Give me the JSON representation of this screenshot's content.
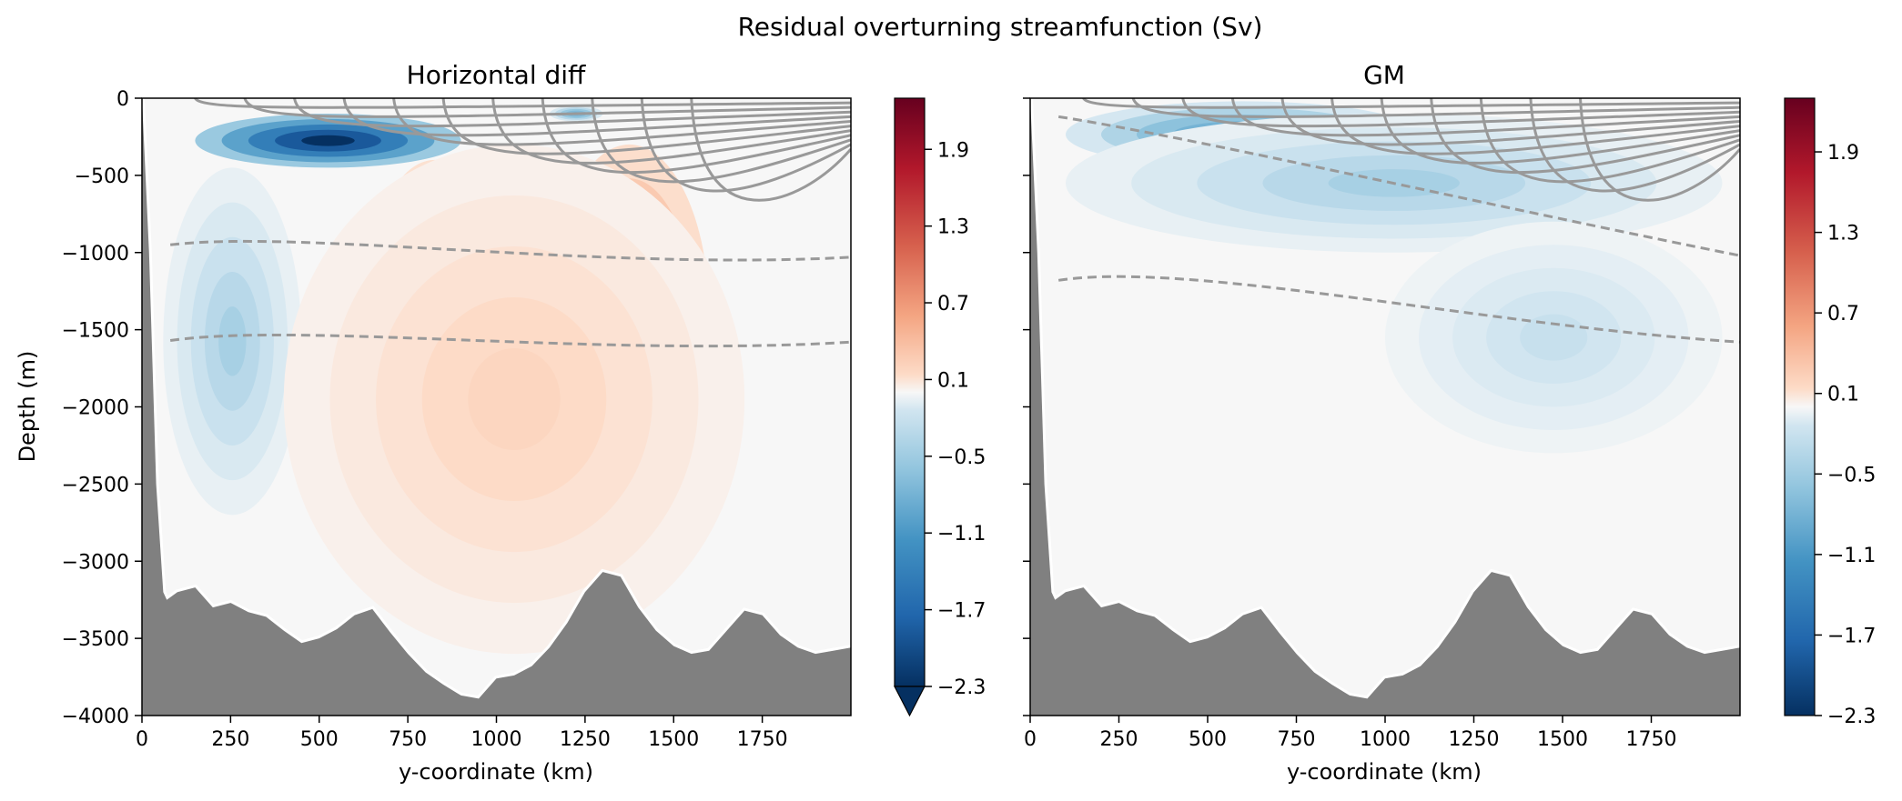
{
  "suptitle": "Residual overturning streamfunction (Sv)",
  "chart_data": [
    {
      "type": "contourf",
      "title": "Horizontal diff",
      "xlabel": "y-coordinate (km)",
      "ylabel": "Depth (m)",
      "xlim": [
        0,
        2000
      ],
      "ylim": [
        -4000,
        0
      ],
      "xticks": [
        0,
        250,
        500,
        750,
        1000,
        1250,
        1500,
        1750
      ],
      "yticks": [
        0,
        -500,
        -1000,
        -1500,
        -2000,
        -2500,
        -3000,
        -3500,
        -4000
      ],
      "colorbar": {
        "cmap": "RdBu_r",
        "vmin": -2.3,
        "vmax": 2.3,
        "ticks": [
          -2.3,
          -1.7,
          -1.1,
          -0.5,
          0.1,
          0.7,
          1.3,
          1.9
        ],
        "extend": "min"
      },
      "features": [
        {
          "kind": "negative",
          "x": [
            150,
            900
          ],
          "y": [
            -100,
            -450
          ],
          "peak": -2.3
        },
        {
          "kind": "negative",
          "x": [
            1150,
            1300
          ],
          "y": [
            -50,
            -150
          ],
          "peak": -0.8
        },
        {
          "kind": "negative",
          "x": [
            60,
            450
          ],
          "y": [
            -450,
            -2700
          ],
          "peak": -0.4
        },
        {
          "kind": "positive",
          "x": [
            600,
            1050
          ],
          "y": [
            -400,
            -3000
          ],
          "peak": 0.8
        },
        {
          "kind": "positive",
          "x": [
            1150,
            1600
          ],
          "y": [
            -300,
            -2500
          ],
          "peak": 0.9
        },
        {
          "kind": "positive",
          "x": [
            400,
            1700
          ],
          "y": [
            -300,
            -3600
          ],
          "peak": 0.25
        }
      ]
    },
    {
      "type": "contourf",
      "title": "GM",
      "xlabel": "y-coordinate (km)",
      "xlim": [
        0,
        2000
      ],
      "ylim": [
        -4000,
        0
      ],
      "xticks": [
        0,
        250,
        500,
        750,
        1000,
        1250,
        1500,
        1750
      ],
      "yticks": [
        0,
        -500,
        -1000,
        -1500,
        -2000,
        -2500,
        -3000,
        -3500,
        -4000
      ],
      "colorbar": {
        "cmap": "RdBu_r",
        "vmin": -2.3,
        "vmax": 2.3,
        "ticks": [
          -2.3,
          -1.7,
          -1.1,
          -0.5,
          0.1,
          0.7,
          1.3,
          1.9
        ],
        "extend": "neither"
      },
      "features": [
        {
          "kind": "negative",
          "x": [
            100,
            1100
          ],
          "y": [
            -20,
            -450
          ],
          "peak": -0.9
        },
        {
          "kind": "negative",
          "x": [
            100,
            1950
          ],
          "y": [
            -100,
            -1000
          ],
          "peak": -0.4
        },
        {
          "kind": "negative",
          "x": [
            1000,
            1950
          ],
          "y": [
            -800,
            -2300
          ],
          "peak": -0.25
        }
      ]
    }
  ],
  "bathymetry": {
    "x": [
      0,
      20,
      40,
      60,
      70,
      100,
      150,
      200,
      250,
      300,
      350,
      400,
      450,
      500,
      550,
      600,
      650,
      700,
      750,
      800,
      850,
      900,
      950,
      1000,
      1050,
      1100,
      1150,
      1200,
      1250,
      1300,
      1350,
      1400,
      1450,
      1500,
      1550,
      1600,
      1650,
      1700,
      1750,
      1800,
      1850,
      1900,
      1950,
      2000
    ],
    "depth": [
      0,
      -1000,
      -2500,
      -3200,
      -3250,
      -3200,
      -3170,
      -3300,
      -3270,
      -3330,
      -3360,
      -3450,
      -3530,
      -3500,
      -3440,
      -3350,
      -3310,
      -3460,
      -3600,
      -3720,
      -3800,
      -3870,
      -3890,
      -3760,
      -3740,
      -3680,
      -3560,
      -3400,
      -3200,
      -3070,
      -3100,
      -3300,
      -3450,
      -3550,
      -3600,
      -3580,
      -3450,
      -3320,
      -3350,
      -3480,
      -3560,
      -3600,
      -3580,
      -3560
    ]
  }
}
